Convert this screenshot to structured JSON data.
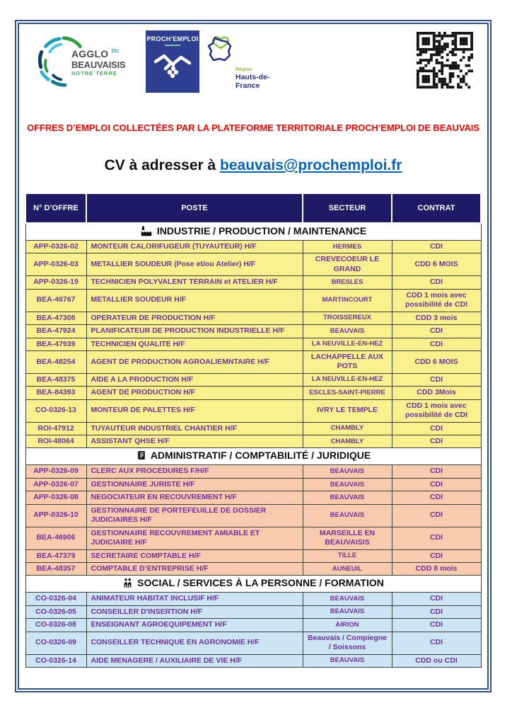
{
  "page": {
    "title_red": "OFFRES D’EMPLOI COLLECTÉES PAR LA PLATEFORME TERRITORIALE PROCH’EMPLOI DE BEAUVAIS",
    "cv_prefix": "CV à adresser à ",
    "cv_email": "beauvais@prochemploi.fr"
  },
  "logos": {
    "agglo": {
      "line1": "AGGLO",
      "du": "DU",
      "line2": "BEAUVAISIS",
      "line3": "NOTRE TERRE"
    },
    "proch": {
      "label": "PROCH’EMPLOI"
    },
    "region": {
      "line1": "Région",
      "line2": "Hauts-de-France"
    }
  },
  "colors": {
    "frame_border": "#31508F",
    "table_header_bg": "#1E1B66",
    "table_header_text": "#FFFFFF",
    "row_yellow": "#F7F08C",
    "row_salmon": "#F8CBAD",
    "row_blue": "#CBE5F5",
    "cell_text": "#7030A0",
    "title_red": "#FF0000",
    "link_blue": "#0563C1"
  },
  "table": {
    "headers": [
      "N° D’OFFRE",
      "POSTE",
      "SECTEUR",
      "CONTRAT"
    ],
    "sections": [
      {
        "label": "INDUSTRIE / PRODUCTION / MAINTENANCE",
        "icon": "factory-icon",
        "row_color": "#F7F08C",
        "rows": [
          [
            "APP-0326-02",
            "MONTEUR CALORIFUGEUR (TUYAUTEUR) H/F",
            "HERMES",
            "CDI"
          ],
          [
            "APP-0326-03",
            "METALLIER SOUDEUR (Pose et/ou Atelier) H/F",
            "CREVECOEUR LE GRAND",
            "CDD 6 MOIS"
          ],
          [
            "APP-0326-19",
            "TECHNICIEN POLYVALENT TERRAIN et ATELIER H/F",
            "BRESLES",
            "CDI"
          ],
          [
            "BEA-46767",
            "METALLIER SOUDEUR H/F",
            "MARTINCOURT",
            "CDD 1 mois avec possibilité de CDI"
          ],
          [
            "BEA-47308",
            "OPERATEUR DE PRODUCTION H/F",
            "TROISSEREUX",
            "CDD 3 mois"
          ],
          [
            "BEA-47924",
            "PLANIFICATEUR DE PRODUCTION INDUSTRIELLE H/F",
            "BEAUVAIS",
            "CDI"
          ],
          [
            "BEA-47939",
            "TECHNICIEN QUALITE H/F",
            "LA NEUVILLE-EN-HEZ",
            "CDI"
          ],
          [
            "BEA-48254",
            "AGENT DE PRODUCTION AGROALIEMNTAIRE H/F",
            "LACHAPPELLE AUX POTS",
            "CDD 6 MOIS"
          ],
          [
            "BEA-48375",
            "AIDE A LA PRODUCTION H/F",
            "LA NEUVILLE-EN-HEZ",
            "CDI"
          ],
          [
            "BEA-84393",
            "AGENT DE PRODUCTION H/F",
            "ESCLES-SAINT-PIERRE",
            "CDD 3Mois"
          ],
          [
            "CO-0326-13",
            "MONTEUR DE PALETTES H/F",
            "IVRY LE TEMPLE",
            "CDD 1 mois avec possibilité de CDI"
          ],
          [
            "ROI-47912",
            "TUYAUTEUR INDUSTRIEL CHANTIER H/F",
            "CHAMBLY",
            "CDI"
          ],
          [
            "ROI-48064",
            "ASSISTANT QHSE H/F",
            "CHAMBLY",
            "CDI"
          ]
        ]
      },
      {
        "label": "ADMINISTRATIF / COMPTABILITÉ / JURIDIQUE",
        "icon": "ledger-icon",
        "row_color": "#F8CBAD",
        "rows": [
          [
            "APP-0326-09",
            "CLERC AUX PROCEDURES F/H/F",
            "BEAUVAIS",
            "CDI"
          ],
          [
            "APP-0326-07",
            "GESTIONNAIRE JURISTE H/F",
            "BEAUVAIS",
            "CDI"
          ],
          [
            "APP-0326-08",
            "NEGOCIATEUR EN RECOUVREMENT H/F",
            "BEAUVAIS",
            "CDI"
          ],
          [
            "APP-0326-10",
            "GESTIONNAIRE DE PORTEFEUILLE DE DOSSIER JUDICIAIRES H/F",
            "BEAUVAIS",
            "CDI"
          ],
          [
            "BEA-46906",
            "GESTIONNAIRE RECOUVREMENT AMIABLE ET JUDICIAIRE H/F",
            "MARSEILLE EN BEAUVAISIS",
            "CDI"
          ],
          [
            "BEA-47379",
            "SECRETAIRE COMPTABLE H/F",
            "TILLE",
            "CDI"
          ],
          [
            "BEA-48357",
            "COMPTABLE D’ENTREPRISE H/F",
            "AUNEUIL",
            "CDD 8 mois"
          ]
        ]
      },
      {
        "label": "SOCIAL / SERVICES À LA PERSONNE / FORMATION",
        "icon": "people-icon",
        "row_color": "#CBE5F5",
        "rows": [
          [
            "CO-0326-04",
            "ANIMATEUR HABITAT INCLUSIF H/F",
            "BEAUVAIS",
            "CDI"
          ],
          [
            "CO-0326-05",
            "CONSEILLER D'INSERTION H/F",
            "BEAUVAIS",
            "CDI"
          ],
          [
            "CO-0326-08",
            "ENSEIGNANT AGROEQUIPEMENT H/F",
            "AIRION",
            "CDI"
          ],
          [
            "CO-0326-09",
            "CONSEILLER TECHNIQUE EN AGRONOMIE H/F",
            "Beauvais / Compiegne / Soissons",
            "CDI"
          ],
          [
            "CO-0326-14",
            "AIDE MENAGERE / AUXILIAIRE DE VIE  H/F",
            "BEAUVAIS",
            "CDD ou CDI"
          ]
        ]
      }
    ]
  }
}
